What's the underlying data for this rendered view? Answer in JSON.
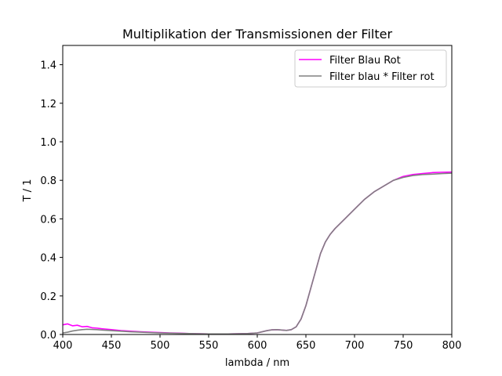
{
  "chart_data": {
    "type": "line",
    "title": "Multiplikation der Transmissionen der Filter",
    "xlabel": "lambda / nm",
    "ylabel": "T / 1",
    "xlim": [
      400,
      800
    ],
    "ylim": [
      0.0,
      1.5
    ],
    "xticks": [
      400,
      450,
      500,
      550,
      600,
      650,
      700,
      750,
      800
    ],
    "yticks": [
      0.0,
      0.2,
      0.4,
      0.6,
      0.8,
      1.0,
      1.2,
      1.4
    ],
    "xtick_labels": [
      "400",
      "450",
      "500",
      "550",
      "600",
      "650",
      "700",
      "750",
      "800"
    ],
    "ytick_labels": [
      "0.0",
      "0.2",
      "0.4",
      "0.6",
      "0.8",
      "1.0",
      "1.2",
      "1.4"
    ],
    "grid": false,
    "legend_position": "top-right",
    "series": [
      {
        "name": "Filter Blau Rot",
        "color": "#ff00ff",
        "x": [
          400,
          405,
          410,
          415,
          420,
          425,
          430,
          435,
          440,
          450,
          460,
          470,
          480,
          490,
          500,
          510,
          520,
          530,
          540,
          550,
          560,
          570,
          580,
          590,
          600,
          605,
          610,
          615,
          620,
          625,
          630,
          635,
          640,
          645,
          650,
          655,
          660,
          665,
          670,
          675,
          680,
          690,
          700,
          710,
          720,
          730,
          740,
          750,
          760,
          770,
          780,
          790,
          800
        ],
        "y": [
          0.05,
          0.055,
          0.045,
          0.048,
          0.04,
          0.042,
          0.035,
          0.033,
          0.03,
          0.025,
          0.02,
          0.017,
          0.014,
          0.012,
          0.01,
          0.008,
          0.007,
          0.005,
          0.004,
          0.003,
          0.003,
          0.003,
          0.004,
          0.005,
          0.008,
          0.014,
          0.02,
          0.024,
          0.025,
          0.023,
          0.021,
          0.025,
          0.04,
          0.08,
          0.15,
          0.24,
          0.33,
          0.42,
          0.48,
          0.52,
          0.55,
          0.6,
          0.65,
          0.7,
          0.74,
          0.77,
          0.8,
          0.82,
          0.83,
          0.835,
          0.84,
          0.842,
          0.843
        ]
      },
      {
        "name": "Filter blau * Filter rot",
        "color": "#808080",
        "x": [
          400,
          405,
          410,
          415,
          420,
          425,
          430,
          435,
          440,
          450,
          460,
          470,
          480,
          490,
          500,
          510,
          520,
          530,
          540,
          550,
          560,
          570,
          580,
          590,
          600,
          605,
          610,
          615,
          620,
          625,
          630,
          635,
          640,
          645,
          650,
          655,
          660,
          665,
          670,
          675,
          680,
          690,
          700,
          710,
          720,
          730,
          740,
          750,
          760,
          770,
          780,
          790,
          800
        ],
        "y": [
          0.008,
          0.012,
          0.018,
          0.022,
          0.025,
          0.027,
          0.026,
          0.025,
          0.023,
          0.02,
          0.017,
          0.014,
          0.012,
          0.01,
          0.008,
          0.007,
          0.006,
          0.005,
          0.004,
          0.003,
          0.003,
          0.003,
          0.004,
          0.005,
          0.008,
          0.014,
          0.02,
          0.024,
          0.025,
          0.023,
          0.021,
          0.025,
          0.04,
          0.08,
          0.15,
          0.24,
          0.33,
          0.42,
          0.48,
          0.52,
          0.55,
          0.6,
          0.65,
          0.7,
          0.74,
          0.77,
          0.8,
          0.815,
          0.825,
          0.83,
          0.832,
          0.835,
          0.837
        ]
      }
    ]
  }
}
